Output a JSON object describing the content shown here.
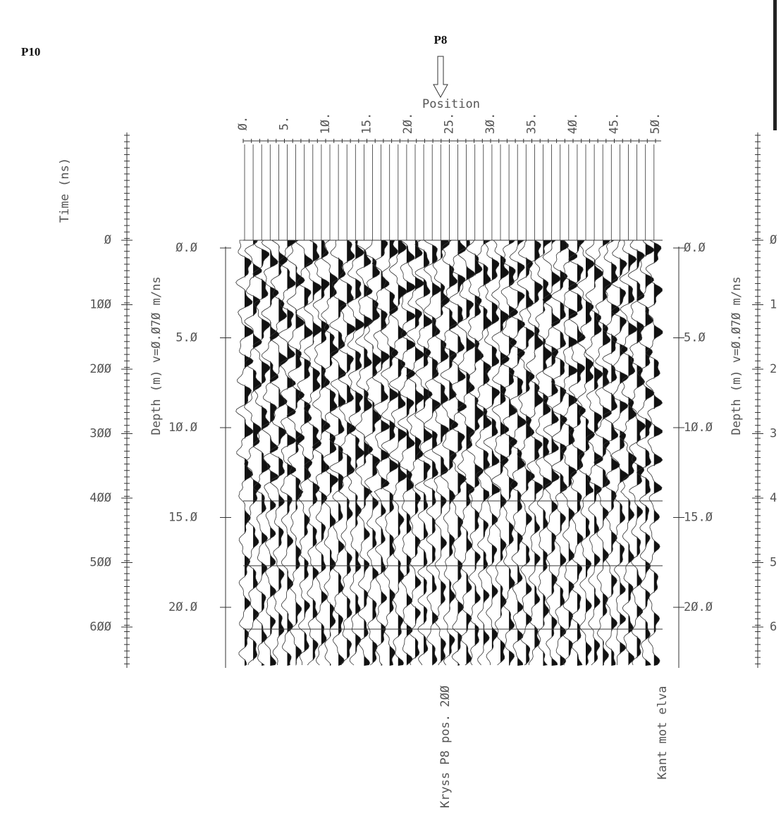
{
  "header": {
    "title": "P10",
    "marker": "P8"
  },
  "top_axis": {
    "title": "Position",
    "labels": [
      "Ø.",
      "5.",
      "1Ø.",
      "15.",
      "2Ø.",
      "25.",
      "3Ø.",
      "35.",
      "4Ø.",
      "45.",
      "5Ø."
    ]
  },
  "left_time_axis": {
    "title": "Time (ns)",
    "labels": [
      "Ø",
      "1ØØ",
      "2ØØ",
      "3ØØ",
      "4ØØ",
      "5ØØ",
      "6ØØ"
    ]
  },
  "left_depth_axis": {
    "title": "Depth (m) v=Ø.Ø7Ø m/ns",
    "labels": [
      "Ø.Ø",
      "5.Ø",
      "1Ø.Ø",
      "15.Ø",
      "2Ø.Ø"
    ]
  },
  "right_depth_axis": {
    "title": "Depth (m) v=Ø.Ø7Ø m/ns",
    "labels": [
      "Ø.Ø",
      "5.Ø",
      "1Ø.Ø",
      "15.Ø",
      "2Ø.Ø"
    ]
  },
  "right_time_axis": {
    "labels": [
      "Ø",
      "1",
      "2",
      "3",
      "4",
      "5",
      "6"
    ]
  },
  "annotations": [
    "Kryss P8 pos. 2ØØ",
    "Kant mot elva"
  ]
}
